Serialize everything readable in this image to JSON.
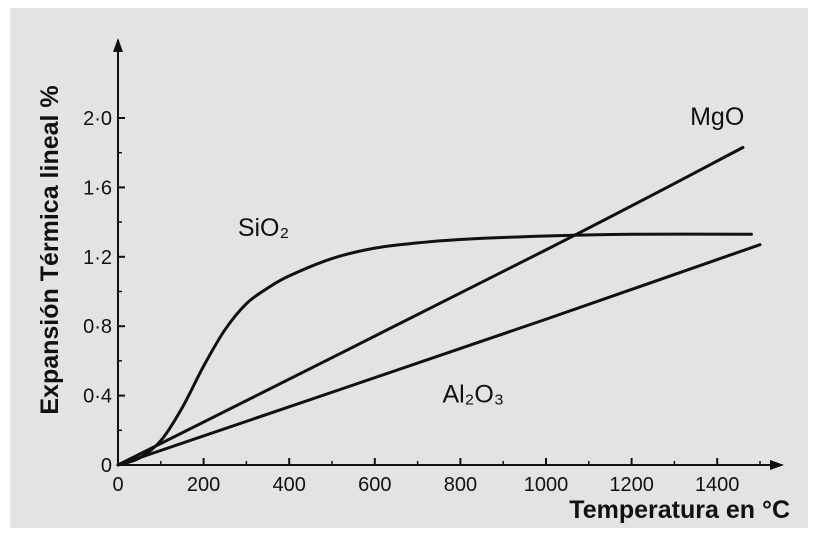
{
  "chart_data": {
    "type": "line",
    "title": "",
    "xlabel": "Temperatura en °C",
    "ylabel": "Expansión Térmica lineal %",
    "xlim": [
      0,
      1500
    ],
    "ylim": [
      0,
      2.0
    ],
    "x_ticks": [
      "0",
      "200",
      "400",
      "600",
      "800",
      "1000",
      "1200",
      "1400"
    ],
    "x_tick_values": [
      0,
      200,
      400,
      600,
      800,
      1000,
      1200,
      1400
    ],
    "y_ticks": [
      "0",
      "0·4",
      "0·8",
      "1·2",
      "1·6",
      "2·0"
    ],
    "y_tick_values": [
      0,
      0.4,
      0.8,
      1.2,
      1.6,
      2.0
    ],
    "grid": false,
    "series": [
      {
        "name": "SiO₂",
        "color": "#111111",
        "x": [
          0,
          50,
          100,
          150,
          200,
          250,
          300,
          350,
          400,
          500,
          600,
          700,
          800,
          1000,
          1200,
          1480
        ],
        "y": [
          0,
          0.04,
          0.14,
          0.33,
          0.57,
          0.78,
          0.93,
          1.02,
          1.09,
          1.19,
          1.25,
          1.28,
          1.3,
          1.32,
          1.33,
          1.33
        ]
      },
      {
        "name": "MgO",
        "color": "#111111",
        "x": [
          0,
          1000,
          1460
        ],
        "y": [
          0,
          1.24,
          1.83
        ]
      },
      {
        "name": "Al₂O₃",
        "color": "#111111",
        "x": [
          0,
          1000,
          1500
        ],
        "y": [
          0,
          0.84,
          1.27
        ]
      }
    ],
    "series_labels": [
      {
        "text": "SiO₂",
        "x": 340,
        "y": 1.32
      },
      {
        "text": "MgO",
        "x": 1400,
        "y": 1.96
      },
      {
        "text": "Al₂O₃",
        "x": 830,
        "y": 0.36
      }
    ]
  }
}
